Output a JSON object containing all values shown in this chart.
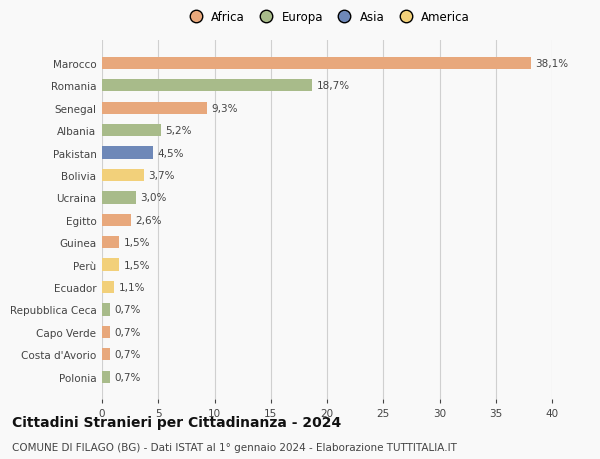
{
  "categories": [
    "Marocco",
    "Romania",
    "Senegal",
    "Albania",
    "Pakistan",
    "Bolivia",
    "Ucraina",
    "Egitto",
    "Guinea",
    "Perù",
    "Ecuador",
    "Repubblica Ceca",
    "Capo Verde",
    "Costa d'Avorio",
    "Polonia"
  ],
  "values": [
    38.1,
    18.7,
    9.3,
    5.2,
    4.5,
    3.7,
    3.0,
    2.6,
    1.5,
    1.5,
    1.1,
    0.7,
    0.7,
    0.7,
    0.7
  ],
  "labels": [
    "38,1%",
    "18,7%",
    "9,3%",
    "5,2%",
    "4,5%",
    "3,7%",
    "3,0%",
    "2,6%",
    "1,5%",
    "1,5%",
    "1,1%",
    "0,7%",
    "0,7%",
    "0,7%",
    "0,7%"
  ],
  "colors": [
    "#E8A87C",
    "#A8BB8A",
    "#E8A87C",
    "#A8BB8A",
    "#6E88B8",
    "#F2D07A",
    "#A8BB8A",
    "#E8A87C",
    "#E8A87C",
    "#F2D07A",
    "#F2D07A",
    "#A8BB8A",
    "#E8A87C",
    "#E8A87C",
    "#A8BB8A"
  ],
  "legend_labels": [
    "Africa",
    "Europa",
    "Asia",
    "America"
  ],
  "legend_colors": [
    "#E8A87C",
    "#A8BB8A",
    "#6E88B8",
    "#F2D07A"
  ],
  "title": "Cittadini Stranieri per Cittadinanza - 2024",
  "subtitle": "COMUNE DI FILAGO (BG) - Dati ISTAT al 1° gennaio 2024 - Elaborazione TUTTITALIA.IT",
  "xlim": [
    0,
    40
  ],
  "xticks": [
    0,
    5,
    10,
    15,
    20,
    25,
    30,
    35,
    40
  ],
  "background_color": "#f9f9f9",
  "grid_color": "#d0d0d0",
  "bar_height": 0.55,
  "label_fontsize": 7.5,
  "title_fontsize": 10,
  "subtitle_fontsize": 7.5,
  "tick_fontsize": 7.5,
  "legend_fontsize": 8.5
}
